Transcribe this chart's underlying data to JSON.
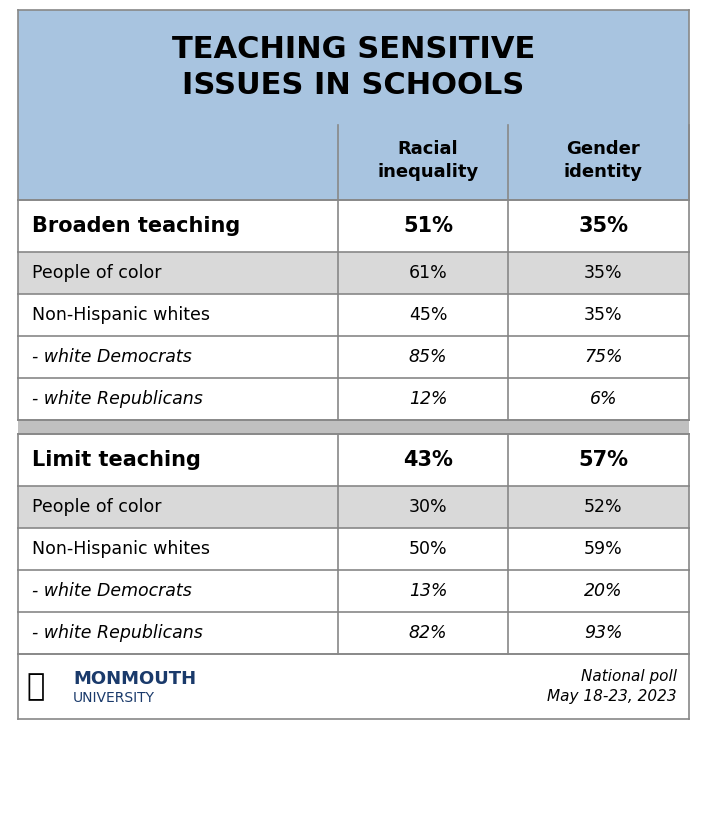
{
  "title": "TEACHING SENSITIVE\nISSUES IN SCHOOLS",
  "col_headers": [
    "",
    "Racial\ninequality",
    "Gender\nidentity"
  ],
  "sections": [
    {
      "header_label": "Broaden teaching",
      "header_val1": "51%",
      "header_val2": "35%",
      "rows": [
        {
          "label": "People of color",
          "val1": "61%",
          "val2": "35%",
          "italic": false,
          "indent": false
        },
        {
          "label": "Non-Hispanic whites",
          "val1": "45%",
          "val2": "35%",
          "italic": false,
          "indent": false
        },
        {
          "label": "- white Democrats",
          "val1": "85%",
          "val2": "75%",
          "italic": true,
          "indent": true
        },
        {
          "label": "- white Republicans",
          "val1": "12%",
          "val2": "6%",
          "italic": true,
          "indent": true
        }
      ]
    },
    {
      "header_label": "Limit teaching",
      "header_val1": "43%",
      "header_val2": "57%",
      "rows": [
        {
          "label": "People of color",
          "val1": "30%",
          "val2": "52%",
          "italic": false,
          "indent": false
        },
        {
          "label": "Non-Hispanic whites",
          "val1": "50%",
          "val2": "59%",
          "italic": false,
          "indent": false
        },
        {
          "label": "- white Democrats",
          "val1": "13%",
          "val2": "20%",
          "italic": true,
          "indent": true
        },
        {
          "label": "- white Republicans",
          "val1": "82%",
          "val2": "93%",
          "italic": true,
          "indent": true
        }
      ]
    }
  ],
  "footer_left": "MONMOUTH\nUNIVERSITY",
  "footer_right": "National poll\nMay 18-23, 2023",
  "colors": {
    "title_bg": "#a8c4e0",
    "header_row_bg": "#ffffff",
    "section_header_bg": "#ffffff",
    "odd_row_bg": "#d9d9d9",
    "even_row_bg": "#ffffff",
    "italic_row_bg": "#ffffff",
    "border": "#888888",
    "title_text": "#000000",
    "header_text": "#000000",
    "body_text": "#000000",
    "footer_text": "#1f4e79"
  }
}
